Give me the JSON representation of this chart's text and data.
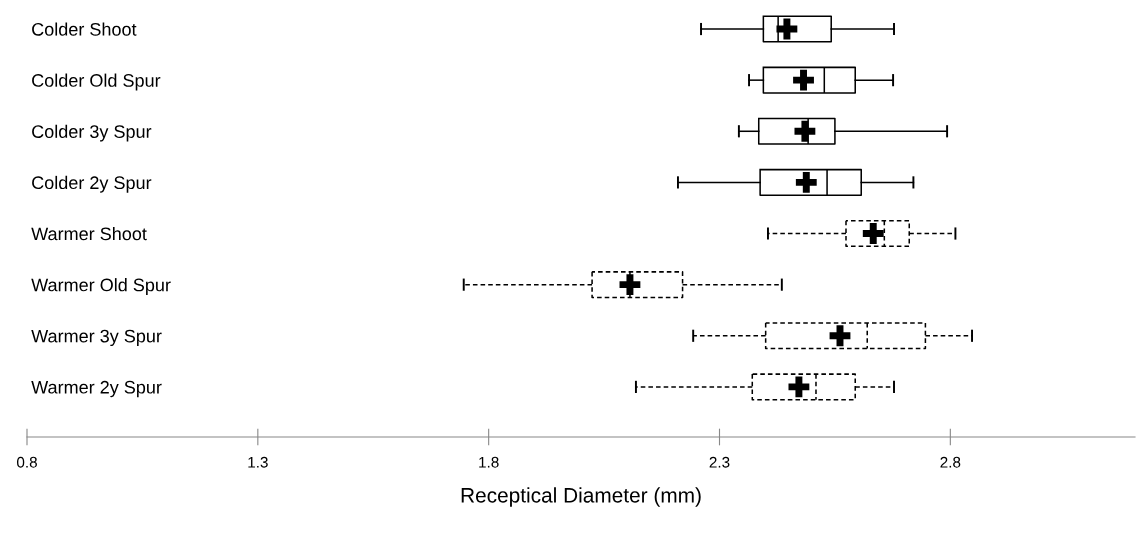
{
  "chart_data": {
    "type": "box",
    "orientation": "horizontal",
    "xlabel": "Receptical Diameter (mm)",
    "categories": [
      "Colder Shoot",
      "Colder Old Spur",
      "Colder 3y Spur",
      "Colder 2y Spur",
      "Warmer Shoot",
      "Warmer Old Spur",
      "Warmer 3y Spur",
      "Warmer 2y Spur"
    ],
    "xlim": [
      0.8,
      3.2
    ],
    "xticks": [
      0.8,
      1.3,
      1.8,
      2.3,
      2.8
    ],
    "grid": false,
    "legend": false,
    "marker": "cross",
    "series": [
      {
        "color": "#000000",
        "line_style": "solid",
        "boxes": [
          {
            "low": 2.26,
            "q1": 2.395,
            "median": 2.427,
            "q3": 2.542,
            "high": 2.678,
            "mean": 2.446
          },
          {
            "low": 2.364,
            "q1": 2.395,
            "median": 2.527,
            "q3": 2.594,
            "high": 2.676,
            "mean": 2.482
          },
          {
            "low": 2.342,
            "q1": 2.385,
            "median": 2.492,
            "q3": 2.55,
            "high": 2.793,
            "mean": 2.485
          },
          {
            "low": 2.21,
            "q1": 2.388,
            "median": 2.533,
            "q3": 2.607,
            "high": 2.72,
            "mean": 2.488
          },
          null,
          null,
          null,
          null
        ]
      },
      {
        "color": "#000000",
        "line_style": "dashed",
        "boxes": [
          null,
          null,
          null,
          null,
          {
            "low": 2.405,
            "q1": 2.574,
            "median": 2.657,
            "q3": 2.711,
            "high": 2.811,
            "mean": 2.633
          },
          {
            "low": 1.746,
            "q1": 2.024,
            "median": 2.106,
            "q3": 2.22,
            "high": 2.435,
            "mean": 2.106
          },
          {
            "low": 2.243,
            "q1": 2.4,
            "median": 2.62,
            "q3": 2.746,
            "high": 2.847,
            "mean": 2.561
          },
          {
            "low": 2.119,
            "q1": 2.371,
            "median": 2.509,
            "q3": 2.594,
            "high": 2.678,
            "mean": 2.472
          }
        ]
      }
    ]
  }
}
